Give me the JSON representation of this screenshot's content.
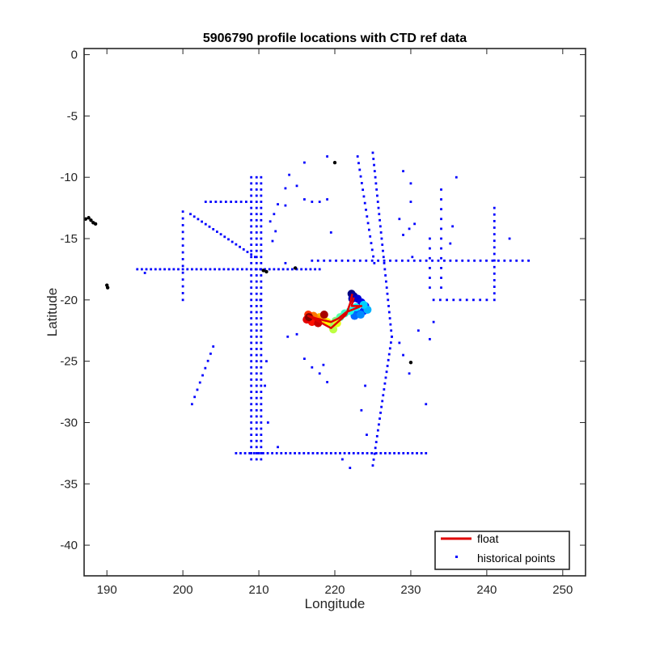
{
  "chart_data": {
    "type": "scatter",
    "title": "5906790 profile locations with CTD ref data",
    "xlabel": "Longitude",
    "ylabel": "Latitude",
    "xlim": [
      187,
      253
    ],
    "ylim": [
      -42.5,
      0.5
    ],
    "xticks": [
      190,
      200,
      210,
      220,
      230,
      240,
      250
    ],
    "yticks": [
      0,
      -5,
      -10,
      -15,
      -20,
      -25,
      -30,
      -35,
      -40
    ],
    "xtick_labels": [
      "190",
      "200",
      "210",
      "220",
      "230",
      "240",
      "250"
    ],
    "ytick_labels": [
      "0",
      "-5",
      "-10",
      "-15",
      "-20",
      "-25",
      "-30",
      "-35",
      "-40"
    ],
    "grid": false,
    "legend_position": "bottom-right",
    "legend": [
      {
        "label": "float",
        "color": "#e00000",
        "marker": "line"
      },
      {
        "label": "historical points",
        "color": "#0000ff",
        "marker": "dot"
      }
    ],
    "colors": {
      "float": "#e00000",
      "historical": "#0000ff",
      "land": "#000000"
    },
    "historical_lines": [
      {
        "from": [
          194,
          -17.5
        ],
        "to": [
          218,
          -17.5
        ],
        "step": 0.6
      },
      {
        "from": [
          217,
          -16.8
        ],
        "to": [
          245.5,
          -16.8
        ],
        "step": 0.8
      },
      {
        "from": [
          207,
          -32.5
        ],
        "to": [
          232,
          -32.5
        ],
        "step": 0.6
      },
      {
        "from": [
          209,
          -10
        ],
        "to": [
          209,
          -33
        ],
        "step": 0.5
      },
      {
        "from": [
          209.7,
          -10
        ],
        "to": [
          209.7,
          -33
        ],
        "step": 0.5
      },
      {
        "from": [
          210.3,
          -10
        ],
        "to": [
          210.3,
          -33
        ],
        "step": 0.5
      },
      {
        "from": [
          201,
          -13
        ],
        "to": [
          209.5,
          -16.5
        ],
        "step": 0.55
      },
      {
        "from": [
          203,
          -12
        ],
        "to": [
          209,
          -12
        ],
        "step": 0.7
      },
      {
        "from": [
          225,
          -8
        ],
        "to": [
          227.5,
          -23
        ],
        "step": 0.5
      },
      {
        "from": [
          227.5,
          -23
        ],
        "to": [
          225,
          -33.5
        ],
        "step": 0.5
      },
      {
        "from": [
          223,
          -8.3
        ],
        "to": [
          225.2,
          -17
        ],
        "step": 0.55
      },
      {
        "from": [
          200,
          -12.8
        ],
        "to": [
          200,
          -20
        ],
        "step": 0.55
      },
      {
        "from": [
          241,
          -12.5
        ],
        "to": [
          241,
          -20
        ],
        "step": 0.55
      },
      {
        "from": [
          233,
          -20
        ],
        "to": [
          240,
          -20
        ],
        "step": 0.9
      },
      {
        "from": [
          204,
          -23.8
        ],
        "to": [
          201.2,
          -28.5
        ],
        "step": 0.7
      },
      {
        "from": [
          232.5,
          -15
        ],
        "to": [
          232.5,
          -19
        ],
        "step": 0.8
      },
      {
        "from": [
          234,
          -11
        ],
        "to": [
          234,
          -19
        ],
        "step": 0.8
      }
    ],
    "historical_points": [
      [
        216,
        -8.8
      ],
      [
        219,
        -8.3
      ],
      [
        214,
        -9.8
      ],
      [
        213.5,
        -10.9
      ],
      [
        212.5,
        -12.2
      ],
      [
        213.5,
        -12.3
      ],
      [
        212,
        -13
      ],
      [
        211.5,
        -13.6
      ],
      [
        212.2,
        -14.4
      ],
      [
        211.8,
        -15.2
      ],
      [
        215,
        -10.7
      ],
      [
        216,
        -11.8
      ],
      [
        217,
        -12
      ],
      [
        218,
        -12
      ],
      [
        219,
        -11.8
      ],
      [
        219.5,
        -14.5
      ],
      [
        229,
        -9.5
      ],
      [
        230,
        -10.5
      ],
      [
        230,
        -12
      ],
      [
        230.5,
        -13.8
      ],
      [
        229.8,
        -14.2
      ],
      [
        228.5,
        -13.4
      ],
      [
        229,
        -14.7
      ],
      [
        230.2,
        -16.5
      ],
      [
        236,
        -10
      ],
      [
        235.5,
        -14
      ],
      [
        235.2,
        -15.4
      ],
      [
        243,
        -15
      ],
      [
        224,
        -27
      ],
      [
        223.5,
        -29
      ],
      [
        224.2,
        -31
      ],
      [
        221,
        -33
      ],
      [
        222,
        -33.7
      ],
      [
        229,
        -24.5
      ],
      [
        228.5,
        -23.5
      ],
      [
        229.8,
        -26
      ],
      [
        231,
        -22.5
      ],
      [
        232.5,
        -23.2
      ],
      [
        232,
        -28.5
      ],
      [
        233,
        -21.8
      ],
      [
        215,
        -22.8
      ],
      [
        213.8,
        -23
      ],
      [
        216,
        -24.8
      ],
      [
        217,
        -25.5
      ],
      [
        218,
        -26
      ],
      [
        219,
        -26.7
      ],
      [
        218.5,
        -25.3
      ],
      [
        216.8,
        -21.5
      ],
      [
        212.5,
        -32
      ],
      [
        195,
        -17.8
      ],
      [
        213.5,
        -17
      ],
      [
        210.2,
        -20
      ],
      [
        211,
        -25
      ],
      [
        210.8,
        -27
      ],
      [
        211.2,
        -30
      ]
    ],
    "black_points": [
      [
        187.2,
        -13.4
      ],
      [
        187.6,
        -13.3
      ],
      [
        187.9,
        -13.5
      ],
      [
        188.2,
        -13.7
      ],
      [
        188.5,
        -13.8
      ],
      [
        190,
        -18.8
      ],
      [
        190.1,
        -19
      ],
      [
        220,
        -8.8
      ],
      [
        214.8,
        -17.4
      ],
      [
        210.6,
        -17.6
      ],
      [
        211,
        -17.7
      ],
      [
        230,
        -25.1
      ]
    ],
    "float_track": [
      [
        222.5,
        -19.8
      ],
      [
        222.2,
        -20.5
      ],
      [
        223.5,
        -20.5
      ],
      [
        221.5,
        -21
      ],
      [
        220.5,
        -21.5
      ],
      [
        219.5,
        -21.8
      ],
      [
        217.5,
        -21.5
      ],
      [
        216.5,
        -21.3
      ],
      [
        219.5,
        -22.3
      ],
      [
        221.5,
        -21.2
      ],
      [
        222,
        -20.3
      ],
      [
        222.3,
        -19.5
      ]
    ],
    "float_profiles": [
      [
        222.2,
        -19.5,
        0
      ],
      [
        222.5,
        -19.7,
        0.03
      ],
      [
        222.3,
        -19.9,
        0.05
      ],
      [
        223,
        -19.9,
        0.08
      ],
      [
        223.5,
        -20.2,
        0.1
      ],
      [
        224,
        -20.5,
        0.13
      ],
      [
        223.8,
        -20.9,
        0.16
      ],
      [
        223,
        -21.1,
        0.2
      ],
      [
        222.6,
        -21.3,
        0.23
      ],
      [
        223.4,
        -21.2,
        0.26
      ],
      [
        224.3,
        -20.8,
        0.3
      ],
      [
        223.8,
        -20.4,
        0.33
      ],
      [
        222.8,
        -20.6,
        0.36
      ],
      [
        222,
        -20.9,
        0.4
      ],
      [
        221.3,
        -21.1,
        0.43
      ],
      [
        220.7,
        -21.4,
        0.46
      ],
      [
        220.1,
        -21.7,
        0.5
      ],
      [
        219.5,
        -22,
        0.53
      ],
      [
        219.8,
        -22.4,
        0.56
      ],
      [
        220.3,
        -21.9,
        0.6
      ],
      [
        219,
        -21.8,
        0.63
      ],
      [
        218.4,
        -21.6,
        0.66
      ],
      [
        218,
        -21.4,
        0.7
      ],
      [
        217.7,
        -21.6,
        0.73
      ],
      [
        217.2,
        -21.3,
        0.76
      ],
      [
        216.8,
        -21.5,
        0.8
      ],
      [
        216.5,
        -21.2,
        0.83
      ],
      [
        217,
        -21.8,
        0.86
      ],
      [
        216.3,
        -21.6,
        0.9
      ],
      [
        217.8,
        -21.9,
        0.93
      ],
      [
        218.6,
        -21.2,
        0.96
      ],
      [
        216.6,
        -21.4,
        1.0
      ]
    ]
  }
}
